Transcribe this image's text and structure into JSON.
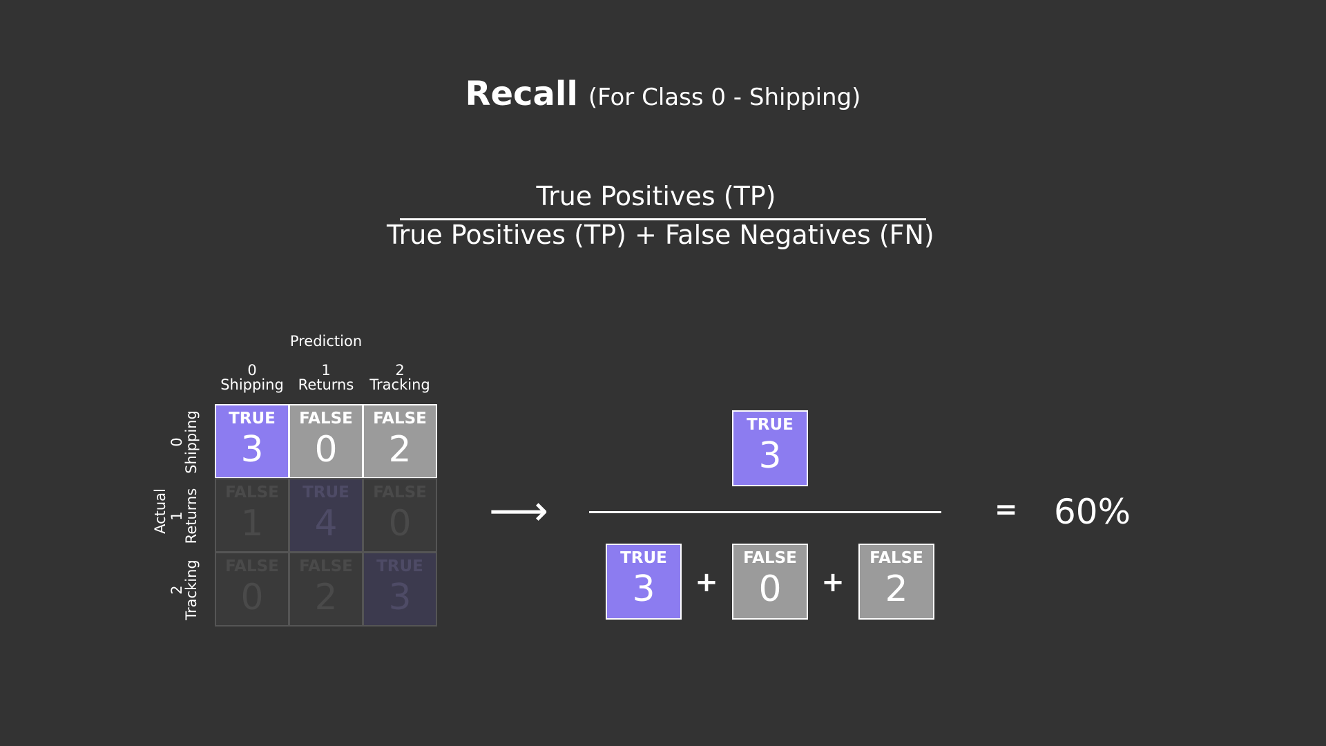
{
  "title": {
    "main": "Recall",
    "sub": "(For Class 0 - Shipping)"
  },
  "formula": {
    "numerator": "True Positives (TP)",
    "denominator": "True Positives (TP) + False Negatives (FN)"
  },
  "matrix": {
    "prediction_label": "Prediction",
    "actual_label": "Actual",
    "columns": [
      {
        "index": "0",
        "name": "Shipping"
      },
      {
        "index": "1",
        "name": "Returns"
      },
      {
        "index": "2",
        "name": "Tracking"
      }
    ],
    "rows": [
      {
        "index": "0",
        "name": "Shipping"
      },
      {
        "index": "1",
        "name": "Returns"
      },
      {
        "index": "2",
        "name": "Tracking"
      }
    ],
    "cells": [
      [
        {
          "label": "TRUE",
          "value": "3"
        },
        {
          "label": "FALSE",
          "value": "0"
        },
        {
          "label": "FALSE",
          "value": "2"
        }
      ],
      [
        {
          "label": "FALSE",
          "value": "1"
        },
        {
          "label": "TRUE",
          "value": "4"
        },
        {
          "label": "FALSE",
          "value": "0"
        }
      ],
      [
        {
          "label": "FALSE",
          "value": "0"
        },
        {
          "label": "FALSE",
          "value": "2"
        },
        {
          "label": "TRUE",
          "value": "3"
        }
      ]
    ]
  },
  "arrow": "⟶",
  "calc": {
    "numerator": {
      "label": "TRUE",
      "value": "3"
    },
    "denominator": [
      {
        "label": "TRUE",
        "value": "3"
      },
      {
        "label": "FALSE",
        "value": "0"
      },
      {
        "label": "FALSE",
        "value": "2"
      }
    ],
    "plus": "+",
    "equals": "=",
    "result": "60%"
  },
  "colors": {
    "background": "#333333",
    "true_cell": "#8c7cf0",
    "false_cell": "#9b9b9b"
  }
}
